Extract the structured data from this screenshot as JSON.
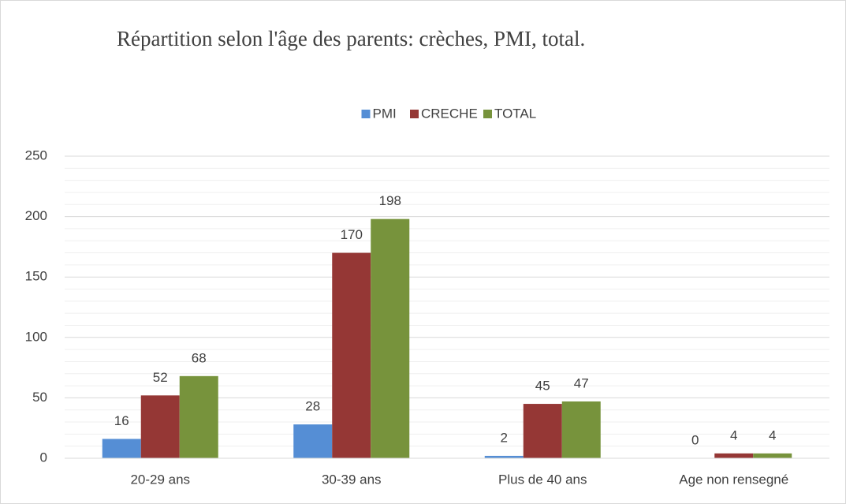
{
  "chart_data": {
    "type": "bar",
    "title": "Répartition selon l'âge des parents: crèches, PMI, total.",
    "categories": [
      "20-29 ans",
      "30-39 ans",
      "Plus de 40 ans",
      "Age non rensegné"
    ],
    "series": [
      {
        "name": "PMI",
        "color": "#558ed5",
        "values": [
          16,
          28,
          2,
          0
        ]
      },
      {
        "name": "CRECHE",
        "color": "#953735",
        "values": [
          52,
          170,
          45,
          4
        ]
      },
      {
        "name": "TOTAL",
        "color": "#77933c",
        "values": [
          68,
          198,
          47,
          4
        ]
      }
    ],
    "ylim": [
      0,
      250
    ],
    "yticks": [
      0,
      50,
      100,
      150,
      200,
      250
    ],
    "grid": true,
    "legend": "top"
  }
}
